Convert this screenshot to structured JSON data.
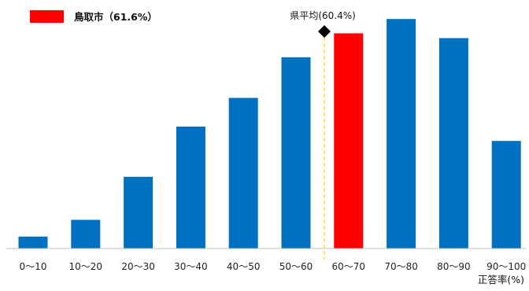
{
  "chart_data": {
    "type": "bar",
    "categories": [
      "0～10",
      "10～20",
      "20～30",
      "30～40",
      "40～50",
      "50～60",
      "60～70",
      "70～80",
      "80～90",
      "90～100"
    ],
    "values": [
      5,
      12,
      30,
      51,
      63,
      80,
      90,
      96,
      88,
      45
    ],
    "highlight_index": 6,
    "xlabel": "正答率(%)",
    "ylabel": "",
    "ylim": [
      0,
      100
    ],
    "grid": false,
    "colors": {
      "bar": "#0070C0",
      "highlight": "#FF0000",
      "average_line": "#FFD700",
      "marker": "#000000"
    },
    "legend": {
      "label": "鳥取市（61.6%）",
      "position": "top-left"
    },
    "average": {
      "label": "県平均(60.4%)",
      "value": 60.4
    }
  }
}
